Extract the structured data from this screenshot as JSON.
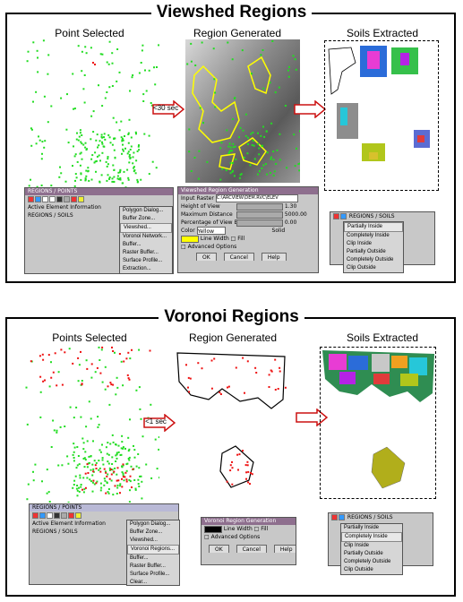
{
  "viewshed": {
    "title": "Viewshed Regions",
    "label_points": "Point Selected",
    "label_region": "Region Generated",
    "label_soils": "Soils Extracted",
    "arrow_time": "<30 sec",
    "toolbar_win": {
      "title": "REGIONS / POINTS",
      "row1": "Active Element Information",
      "row2": "REGIONS / SOILS"
    },
    "toolbar_menu": [
      "Polygon Dialog...",
      "Buffer Zone...",
      "Viewshed...",
      "Voronoi Network...",
      "Buffer...",
      "Raster Buffer...",
      "Surface Profile...",
      "Extraction..."
    ],
    "dialog": {
      "title": "Viewshed Region Generation",
      "input_label": "Input Raster",
      "input_value": "C:\\ARCVIEW\\DEM.RVC\\ELEV",
      "params": [
        {
          "label": "Height of View",
          "value": "1.30"
        },
        {
          "label": "Maximum Distance",
          "value": "5000.00"
        },
        {
          "label": "Percentage of View Before",
          "value": "0.00"
        }
      ],
      "color_label": "Color",
      "color_value": "Yellow",
      "color_extra": "Solid",
      "line_width": "Line Width",
      "fill_label": "Fill",
      "advanced": "Advanced Options",
      "buttons": [
        "OK",
        "Cancel",
        "Help"
      ]
    },
    "select_win": {
      "title": "REGIONS / SOILS",
      "menu": [
        "Partially Inside",
        "Completely Inside",
        "Clip Inside",
        "Partially Outside",
        "Completely Outside",
        "Clip Outside"
      ]
    }
  },
  "voronoi": {
    "title": "Voronoi Regions",
    "label_points": "Points Selected",
    "label_region": "Region Generated",
    "label_soils": "Soils Extracted",
    "arrow_time": "<1 sec",
    "toolbar_win": {
      "title": "REGIONS / POINTS",
      "row1": "Active Element Information",
      "row2": "REGIONS / SOILS"
    },
    "toolbar_menu": [
      "Polygon Dialog...",
      "Buffer Zone...",
      "Viewshed...",
      "Voronoi Regions...",
      "Buffer...",
      "Raster Buffer...",
      "Surface Profile...",
      "Clear..."
    ],
    "dialog": {
      "title": "Voronoi Region Generation",
      "line_width": "Line Width",
      "fill_label": "Fill",
      "advanced": "Advanced Options",
      "buttons": [
        "OK",
        "Cancel",
        "Help"
      ]
    },
    "select_win": {
      "title": "REGIONS / SOILS",
      "menu": [
        "Partially Inside",
        "Completely Inside",
        "Clip Inside",
        "Partially Outside",
        "Completely Outside",
        "Clip Outside"
      ]
    }
  },
  "colors": {
    "point_green": "#22dd22",
    "point_red": "#ee1111",
    "region_yellow": "#ffff00",
    "arrow_red": "#cc1111",
    "title_bar": "#8e6f8e"
  }
}
